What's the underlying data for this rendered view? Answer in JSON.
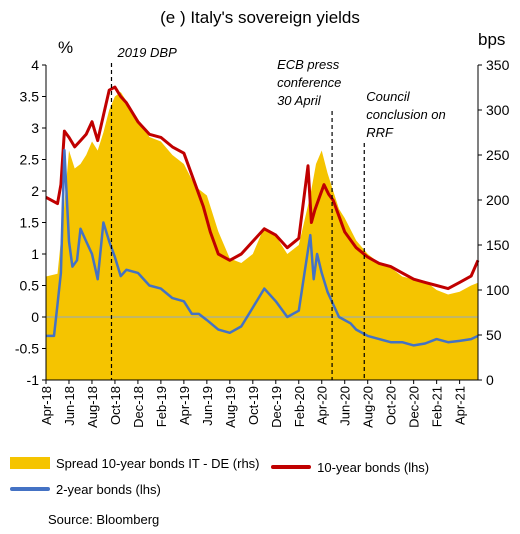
{
  "chart_data": {
    "type": "line",
    "title": "(e ) Italy's sovereign yields",
    "y_left_unit": "%",
    "y_right_unit": "bps",
    "y_left_ticks": [
      "4",
      "3.5",
      "3",
      "2.5",
      "2",
      "1.5",
      "1",
      "0.5",
      "0",
      "-0.5",
      "-1"
    ],
    "y_right_ticks": [
      "350",
      "300",
      "250",
      "200",
      "150",
      "100",
      "50",
      "0"
    ],
    "ylim_left": [
      -1,
      4
    ],
    "ylim_right": [
      0,
      350
    ],
    "x_ticks": [
      "Apr-18",
      "Jun-18",
      "Aug-18",
      "Oct-18",
      "Dec-18",
      "Feb-19",
      "Apr-19",
      "Jun-19",
      "Aug-19",
      "Oct-19",
      "Dec-19",
      "Feb-20",
      "Apr-20",
      "Jun-20",
      "Aug-20",
      "Oct-20",
      "Dec-20",
      "Feb-21",
      "Apr-21"
    ],
    "x_range": [
      0,
      37.6
    ],
    "annotations": [
      {
        "lines": [
          "2019 DBP"
        ],
        "x": 5.7
      },
      {
        "lines": [
          "ECB press",
          "conference",
          "30 April"
        ],
        "x": 24.9
      },
      {
        "lines": [
          "Council",
          "conclusion on",
          "RRF"
        ],
        "x": 27.7
      }
    ],
    "series": [
      {
        "name": "Spread 10-year bonds  IT - DE (rhs)",
        "axis": "right",
        "kind": "area",
        "color": "#F5C400",
        "x": [
          0,
          1,
          1.5,
          2,
          2.5,
          3,
          3.5,
          4,
          4.5,
          5,
          5.5,
          6,
          6.5,
          7,
          8,
          9,
          10,
          11,
          12,
          13,
          14,
          15,
          16,
          17,
          18,
          19,
          20,
          21,
          22,
          23,
          23.5,
          24,
          24.5,
          25,
          25.5,
          26,
          27,
          28,
          29,
          30,
          31,
          32,
          33,
          34,
          35,
          36,
          37,
          37.6
        ],
        "y": [
          115,
          118,
          180,
          255,
          235,
          240,
          250,
          265,
          255,
          275,
          300,
          315,
          320,
          310,
          290,
          270,
          265,
          250,
          240,
          215,
          205,
          165,
          135,
          130,
          140,
          170,
          160,
          140,
          150,
          205,
          240,
          255,
          230,
          210,
          190,
          180,
          155,
          140,
          130,
          125,
          115,
          112,
          110,
          100,
          95,
          98,
          105,
          108
        ]
      },
      {
        "name": "10-year bonds (lhs)",
        "axis": "left",
        "kind": "line",
        "color": "#C00000",
        "x": [
          0,
          1,
          1.3,
          1.6,
          2,
          2.5,
          3,
          3.5,
          4,
          4.5,
          5,
          5.5,
          6,
          6.5,
          7,
          8,
          9,
          10,
          11,
          12,
          13,
          13.7,
          14.3,
          15,
          16,
          17,
          18,
          19,
          20,
          21,
          22,
          22.8,
          23.1,
          23.4,
          23.8,
          24.2,
          24.6,
          25,
          25.5,
          26,
          27,
          28,
          29,
          30,
          31,
          32,
          33,
          34,
          35,
          36,
          37,
          37.6
        ],
        "y": [
          1.9,
          1.8,
          2.1,
          2.95,
          2.85,
          2.7,
          2.8,
          2.9,
          3.1,
          2.8,
          3.2,
          3.6,
          3.65,
          3.5,
          3.4,
          3.1,
          2.9,
          2.85,
          2.7,
          2.6,
          2.1,
          1.75,
          1.35,
          1.0,
          0.9,
          1.0,
          1.2,
          1.4,
          1.3,
          1.1,
          1.25,
          2.4,
          1.5,
          1.7,
          1.9,
          2.1,
          1.95,
          1.85,
          1.6,
          1.35,
          1.1,
          0.95,
          0.85,
          0.8,
          0.7,
          0.6,
          0.55,
          0.5,
          0.45,
          0.55,
          0.65,
          0.9
        ]
      },
      {
        "name": "2-year bonds (lhs)",
        "axis": "left",
        "kind": "line",
        "color": "#4472C4",
        "x": [
          0,
          0.7,
          1,
          1.3,
          1.6,
          2,
          2.3,
          2.7,
          3,
          3.5,
          4,
          4.5,
          5,
          5.5,
          6,
          6.5,
          7,
          8,
          9,
          10,
          11,
          12,
          12.7,
          13.3,
          14,
          15,
          16,
          17,
          18,
          19,
          20,
          21,
          22,
          22.5,
          23,
          23.3,
          23.6,
          24,
          24.5,
          25,
          25.5,
          26,
          26.5,
          27,
          28,
          29,
          30,
          31,
          32,
          33,
          34,
          35,
          36,
          37,
          37.6
        ],
        "y": [
          -0.3,
          -0.3,
          0.2,
          0.7,
          2.65,
          1.2,
          0.8,
          0.9,
          1.4,
          1.2,
          1.0,
          0.6,
          1.5,
          1.2,
          0.95,
          0.65,
          0.75,
          0.7,
          0.5,
          0.45,
          0.3,
          0.25,
          0.05,
          0.05,
          -0.05,
          -0.2,
          -0.25,
          -0.15,
          0.15,
          0.45,
          0.25,
          0.0,
          0.1,
          0.7,
          1.3,
          0.6,
          1.0,
          0.7,
          0.4,
          0.2,
          0.0,
          -0.05,
          -0.1,
          -0.2,
          -0.3,
          -0.35,
          -0.4,
          -0.4,
          -0.45,
          -0.42,
          -0.35,
          -0.4,
          -0.38,
          -0.35,
          -0.3
        ]
      }
    ]
  },
  "source": "Source: Bloomberg"
}
